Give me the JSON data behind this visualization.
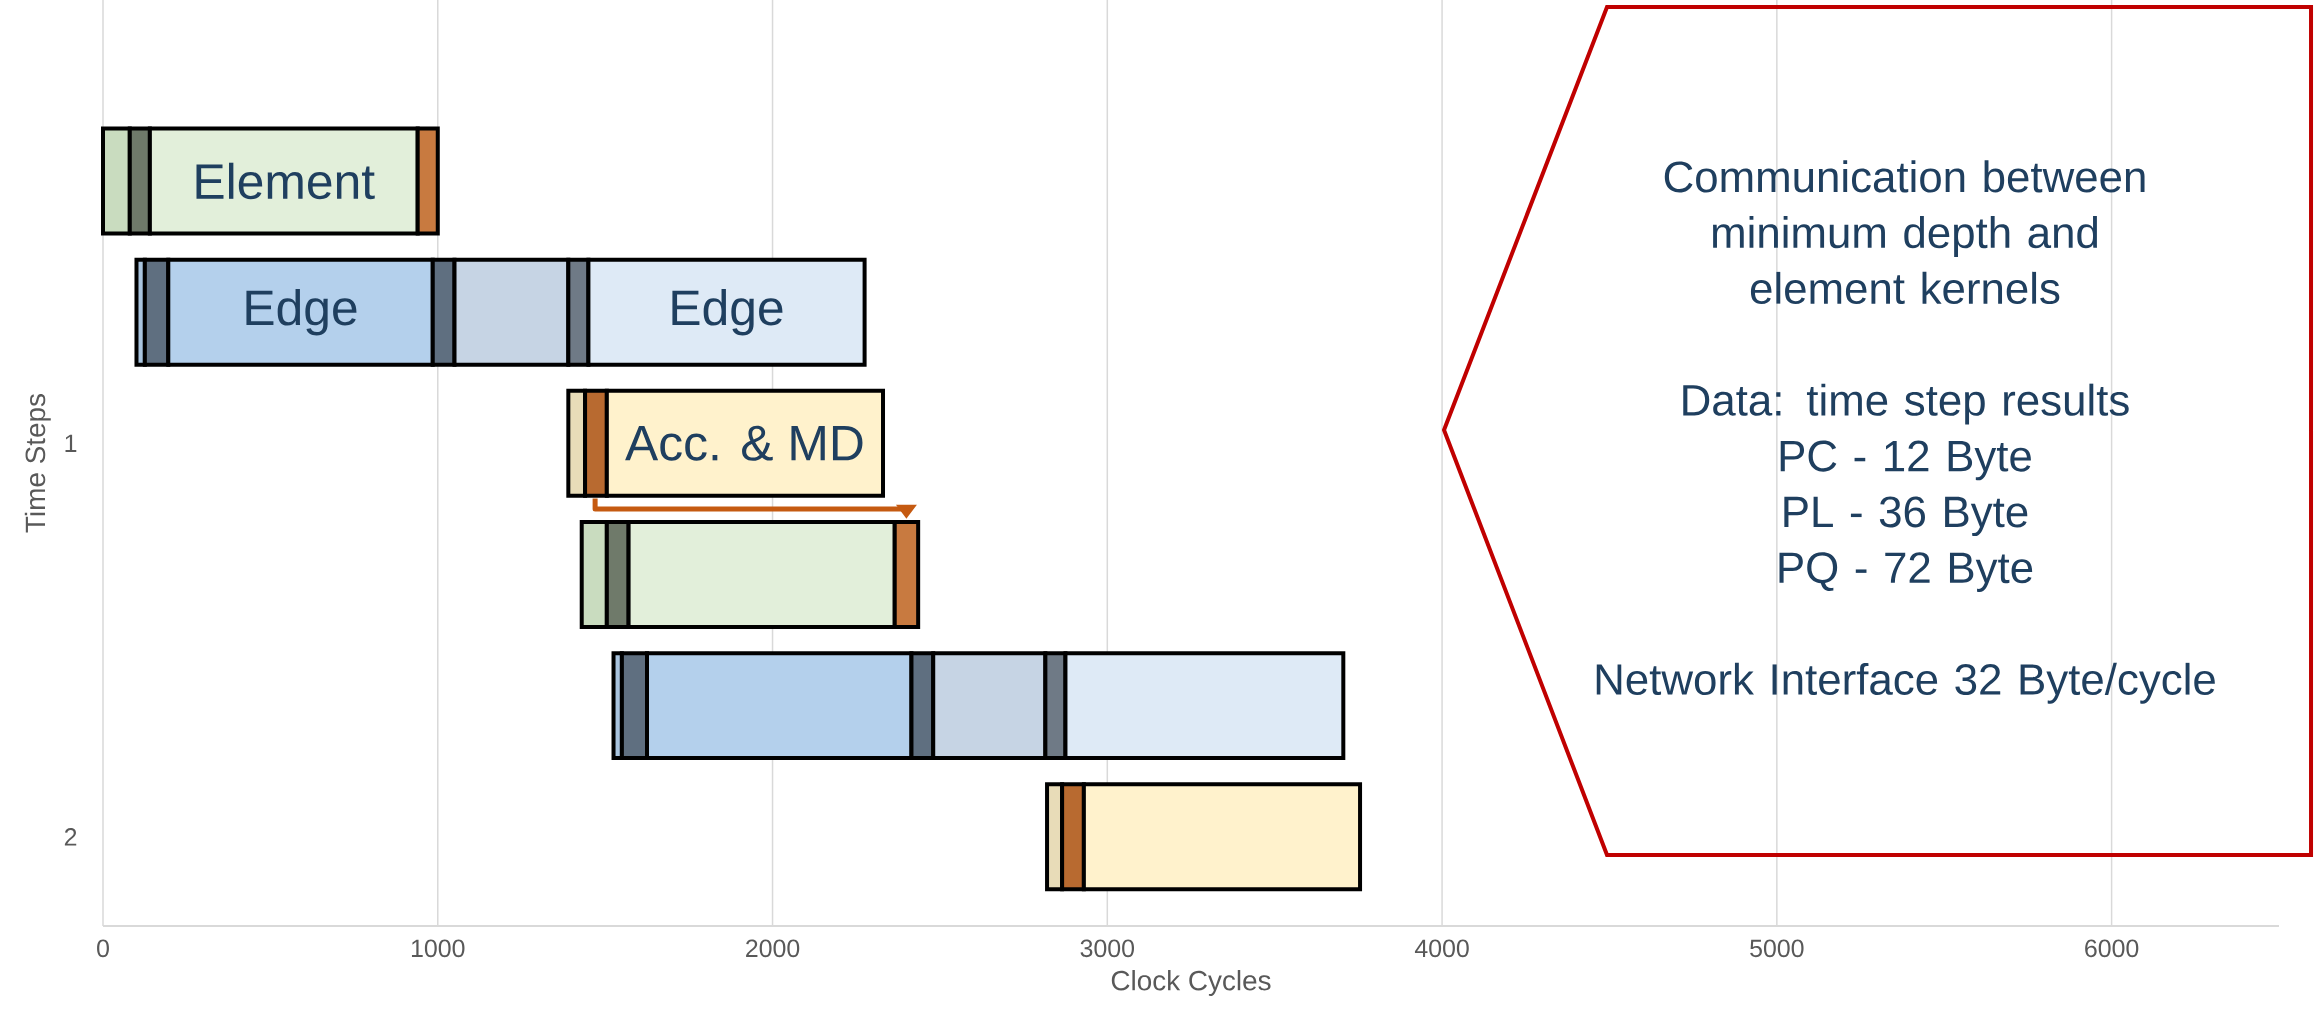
{
  "chart_data": {
    "type": "bar",
    "orientation": "horizontal",
    "xlabel": "Clock Cycles",
    "ylabel": "Time Steps",
    "categories": [
      null,
      null,
      "1",
      null,
      null,
      "2"
    ],
    "xlim": [
      0,
      6500
    ],
    "xticks": [
      0,
      1000,
      2000,
      3000,
      4000,
      5000,
      6000
    ],
    "grid": "x",
    "series": [
      {
        "base": [
          0,
          100,
          1390,
          1430,
          1525,
          2820
        ],
        "values": [
          80,
          25,
          50,
          75,
          25,
          45
        ],
        "colors": [
          "#c9dcbf",
          "#a9c4de",
          "#e8dcb8",
          "#c9dcbf",
          "#a9c4de",
          "#e8dcb8"
        ]
      },
      {
        "base": [
          80,
          125,
          1440,
          1505,
          1550,
          2865
        ],
        "values": [
          60,
          70,
          65,
          65,
          75,
          65
        ],
        "colors": [
          "#6f7a6a",
          "#5f6f80",
          "#b86a30",
          "#6f7a6a",
          "#5f6f80",
          "#b86a30"
        ]
      },
      {
        "base": [
          140,
          195,
          1505,
          1570,
          1625,
          2930
        ],
        "values": [
          800,
          790,
          825,
          795,
          790,
          825
        ],
        "colors": [
          "#e2efda",
          "#b4d0ec",
          "#fff2cc",
          "#e2efda",
          "#b4d0ec",
          "#fff2cc"
        ],
        "value_labels": [
          "Element",
          "Edge",
          "Acc. & MD",
          null,
          null,
          null
        ]
      },
      {
        "base": [
          940,
          985,
          null,
          2365,
          2415,
          null
        ],
        "values": [
          60,
          65,
          null,
          70,
          65,
          null
        ],
        "colors": [
          "#c87a40",
          "#5f6f80",
          null,
          "#c87a40",
          "#5f6f80",
          null
        ]
      },
      {
        "base": [
          null,
          1050,
          null,
          null,
          2480,
          null
        ],
        "values": [
          null,
          340,
          null,
          null,
          335,
          null
        ],
        "colors": [
          null,
          "#c6d4e4",
          null,
          null,
          "#c6d4e4",
          null
        ]
      },
      {
        "base": [
          null,
          1390,
          null,
          null,
          2815,
          null
        ],
        "values": [
          null,
          60,
          null,
          null,
          60,
          null
        ],
        "colors": [
          null,
          "#6f7a86",
          null,
          null,
          "#6f7a86",
          null
        ]
      },
      {
        "base": [
          null,
          1450,
          null,
          null,
          2875,
          null
        ],
        "values": [
          null,
          825,
          null,
          null,
          830,
          null
        ],
        "colors": [
          null,
          "#deeaf6",
          null,
          null,
          "#deeaf6",
          null
        ],
        "value_labels": [
          null,
          "Edge",
          null,
          null,
          null,
          null
        ]
      }
    ],
    "annotations": [
      "Communication between minimum depth and element kernels",
      "Data: time step results",
      "PC -   12 Byte",
      "PL  -  36 Byte",
      "PQ -   72 Byte",
      "Network Interface 32 Byte/cycle"
    ]
  }
}
